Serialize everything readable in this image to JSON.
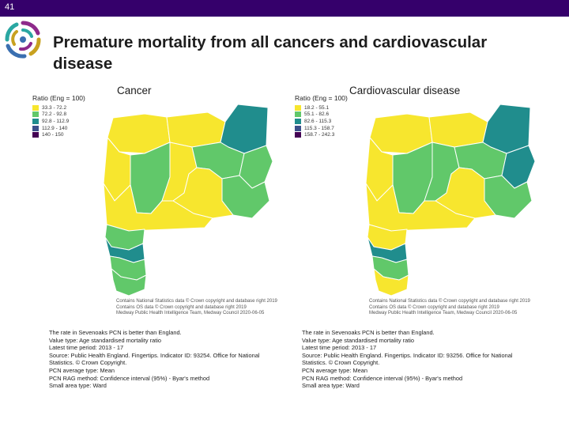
{
  "slide_number": "41",
  "title": "Premature mortality from all cancers and cardiovascular disease",
  "colors": {
    "band": "#35006b",
    "logo_arcs": [
      "#2aa7a2",
      "#8e2a8b",
      "#3a6fb0",
      "#c8a11f"
    ],
    "q1": "#f7e62e",
    "q2": "#61c86a",
    "q3": "#208d8d",
    "q4": "#3c4f8a",
    "q5": "#440154",
    "border": "#ffffff"
  },
  "maps": [
    {
      "title": "Cancer",
      "legend_title": "Ratio (Eng = 100)",
      "legend": [
        "33.3 - 72.2",
        "72.2 - 92.8",
        "92.8 - 112.9",
        "112.9 - 140",
        "140 - 150"
      ],
      "attribution": [
        "Contains National Statistics data © Crown copyright and database right 2019",
        "Contains OS data © Crown copyright and database right 2019",
        "Medway Public Health Intelligence Team, Medway Council 2020-06-05"
      ],
      "caption": [
        "The rate in Sevenoaks PCN is better than England.",
        "Value type: Age standardised mortality ratio",
        "Latest time period: 2013 - 17",
        "Source: Public Health England. Fingertips. Indicator ID: 93254. Office for National Statistics. © Crown Copyright.",
        "PCN average type: Mean",
        "PCN RAG method: Confidence interval (95%) - Byar's method",
        "Small area type: Ward"
      ]
    },
    {
      "title": "Cardiovascular disease",
      "legend_title": "Ratio (Eng = 100)",
      "legend": [
        "18.2 - 55.1",
        "55.1 - 82.6",
        "82.6 - 115.3",
        "115.3 - 158.7",
        "158.7 - 242.3"
      ],
      "attribution": [
        "Contains National Statistics data © Crown copyright and database right 2019",
        "Contains OS data © Crown copyright and database right 2019",
        "Medway Public Health Intelligence Team, Medway Council 2020-06-05"
      ],
      "caption": [
        "The rate in Sevenoaks PCN is better than England.",
        "Value type: Age standardised mortality ratio",
        "Latest time period: 2013 - 17",
        "Source: Public Health England. Fingertips. Indicator ID: 93256. Office for National Statistics. © Crown Copyright.",
        "PCN average type: Mean",
        "PCN RAG method: Confidence interval (95%) - Byar's method",
        "Small area type: Ward"
      ]
    }
  ]
}
